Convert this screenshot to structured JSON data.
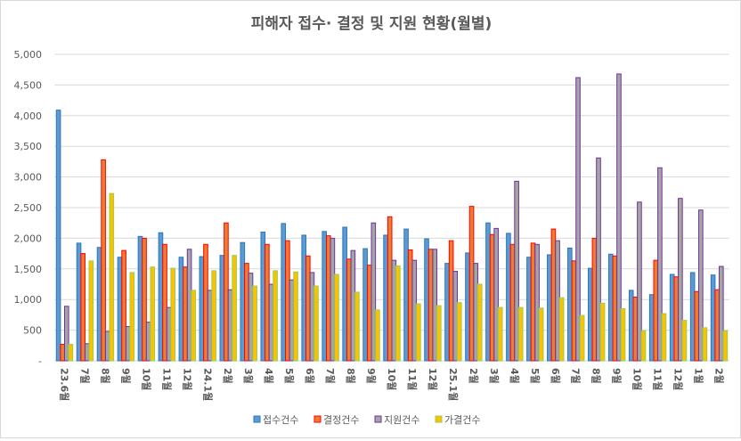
{
  "chart_data": {
    "type": "bar",
    "title": "피해자 접수· 결정 및 지원 현황(월별)",
    "xlabel": "",
    "ylabel": "",
    "ylim": [
      0,
      5000
    ],
    "yticks": [
      0,
      500,
      1000,
      1500,
      2000,
      2500,
      3000,
      3500,
      4000,
      4500,
      5000
    ],
    "ytick_labels": [
      "-",
      "500",
      "1,000",
      "1,500",
      "2,000",
      "2,500",
      "3,000",
      "3,500",
      "4,000",
      "4,500",
      "5,000"
    ],
    "grid": true,
    "legend_position": "bottom",
    "categories": [
      "23.6월",
      "7월",
      "8월",
      "9월",
      "10월",
      "11월",
      "12월",
      "24.1월",
      "2월",
      "3월",
      "4월",
      "5월",
      "6월",
      "7월",
      "8월",
      "9월",
      "10월",
      "11월",
      "12월",
      "25.1월",
      "2월",
      "3월",
      "4월",
      "5월",
      "6월",
      "7월",
      "8월",
      "9월",
      "10월",
      "11월",
      "12월",
      "1월",
      "2월"
    ],
    "series": [
      {
        "name": "접수건수",
        "fill": "#5B9BD5",
        "stroke": "#2E75B6",
        "values": [
          4090,
          1920,
          1850,
          1690,
          2030,
          2090,
          1690,
          1700,
          1720,
          1930,
          2100,
          2240,
          2050,
          2110,
          2180,
          1830,
          2050,
          2150,
          1990,
          1590,
          1760,
          2250,
          2080,
          1690,
          1730,
          1840,
          1510,
          1740,
          1150,
          1080,
          1410,
          1440,
          1400
        ]
      },
      {
        "name": "결정건수",
        "fill": "#ED7D31",
        "stroke": "#FF0000",
        "values": [
          270,
          1750,
          3280,
          1800,
          2000,
          1900,
          1530,
          1900,
          2250,
          1590,
          1900,
          1960,
          1710,
          2040,
          1660,
          1560,
          2350,
          1810,
          1820,
          1960,
          2520,
          2060,
          1900,
          1920,
          2150,
          1630,
          2000,
          1710,
          1040,
          1640,
          1370,
          1130,
          1160
        ]
      },
      {
        "name": "지원건수",
        "fill": "#A5A5A5",
        "stroke": "#7030A0",
        "values": [
          890,
          280,
          480,
          560,
          630,
          870,
          1820,
          1150,
          1160,
          1430,
          1250,
          1320,
          1440,
          2000,
          1800,
          2250,
          1640,
          1640,
          1820,
          1460,
          1590,
          2160,
          2930,
          1900,
          1960,
          4620,
          3310,
          4680,
          2590,
          3150,
          2650,
          2460,
          1540
        ]
      },
      {
        "name": "가결건수",
        "fill": "#FFC000",
        "stroke": "#92D050",
        "values": [
          270,
          1630,
          2730,
          1440,
          1530,
          1510,
          1150,
          1470,
          1720,
          1220,
          1470,
          1450,
          1220,
          1410,
          1120,
          830,
          1550,
          930,
          900,
          950,
          1250,
          870,
          870,
          860,
          1030,
          740,
          940,
          850,
          490,
          770,
          660,
          540,
          490
        ]
      }
    ]
  }
}
